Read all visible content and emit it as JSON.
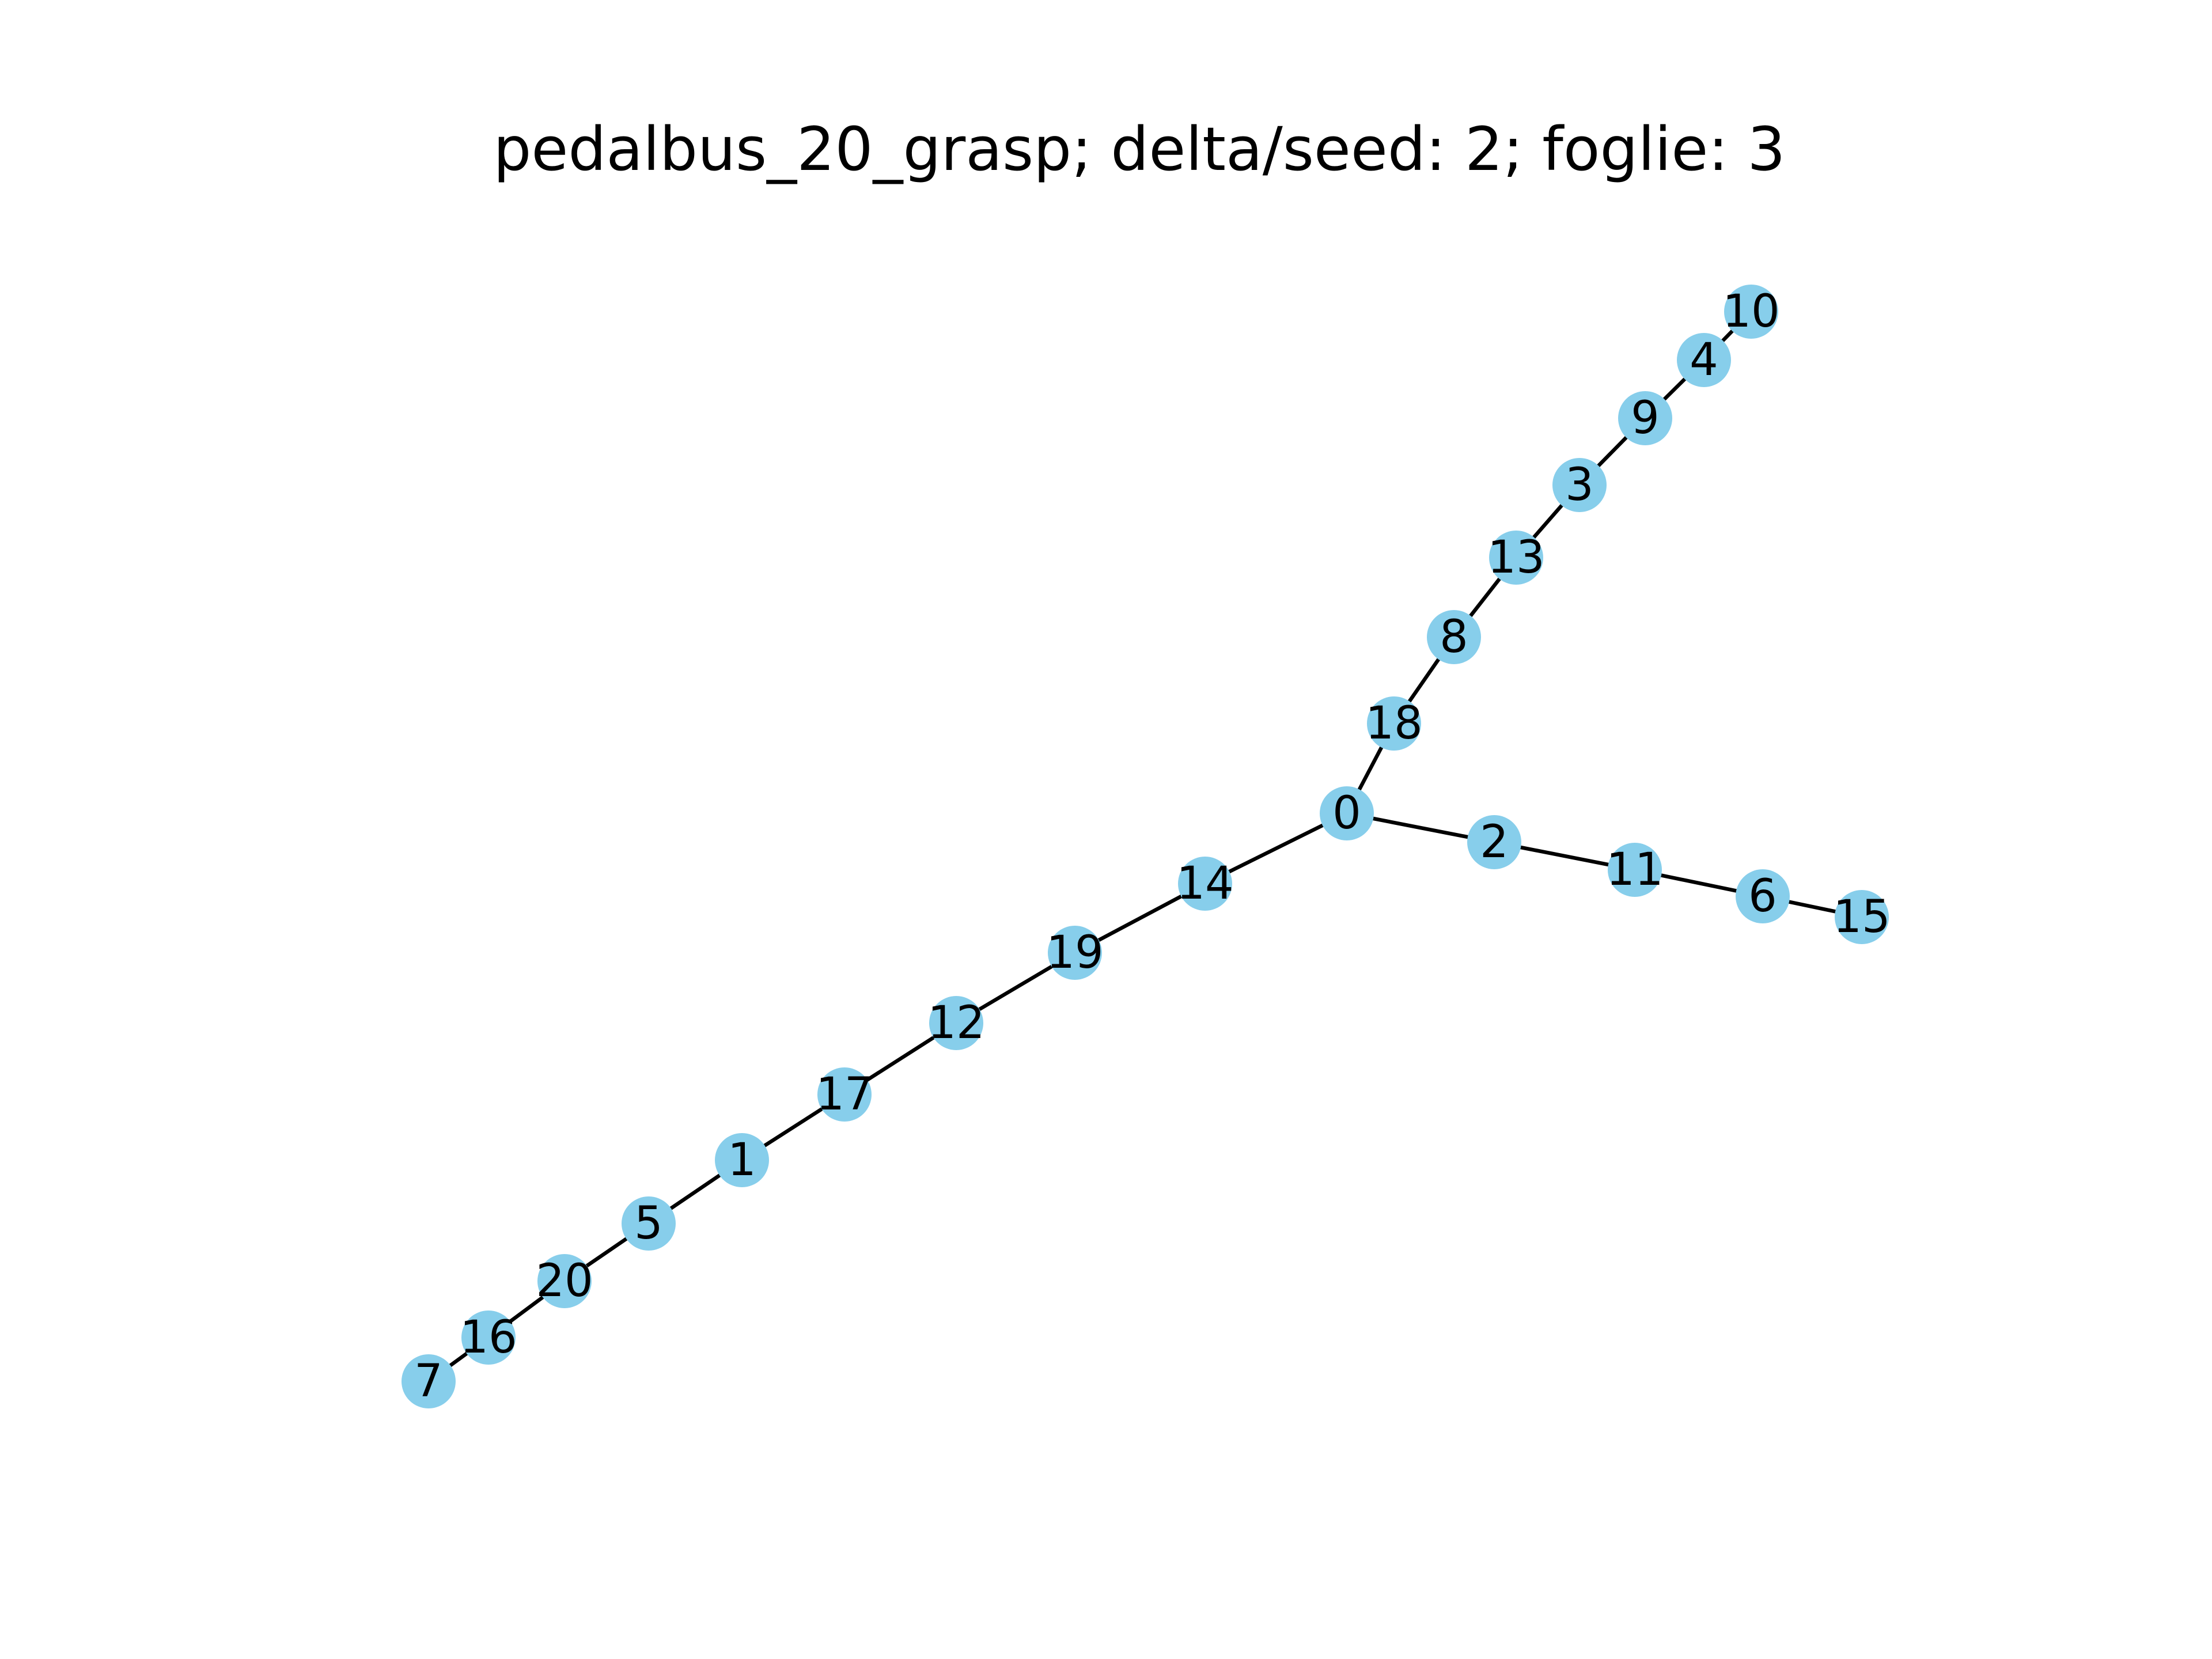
{
  "title": "pedalbus_20_grasp; delta/seed: 2; foglie: 3",
  "node_color": "#87ceeb",
  "edge_color": "#000000",
  "nodes": [
    "0",
    "1",
    "2",
    "3",
    "4",
    "5",
    "6",
    "7",
    "8",
    "9",
    "10",
    "11",
    "12",
    "13",
    "14",
    "15",
    "16",
    "17",
    "18",
    "19",
    "20"
  ],
  "edges": [
    [
      "0",
      "18"
    ],
    [
      "18",
      "8"
    ],
    [
      "8",
      "13"
    ],
    [
      "13",
      "3"
    ],
    [
      "3",
      "9"
    ],
    [
      "9",
      "4"
    ],
    [
      "4",
      "10"
    ],
    [
      "0",
      "2"
    ],
    [
      "2",
      "11"
    ],
    [
      "11",
      "6"
    ],
    [
      "6",
      "15"
    ],
    [
      "0",
      "14"
    ],
    [
      "14",
      "19"
    ],
    [
      "19",
      "12"
    ],
    [
      "12",
      "17"
    ],
    [
      "17",
      "1"
    ],
    [
      "1",
      "5"
    ],
    [
      "5",
      "20"
    ],
    [
      "20",
      "16"
    ],
    [
      "16",
      "7"
    ]
  ]
}
